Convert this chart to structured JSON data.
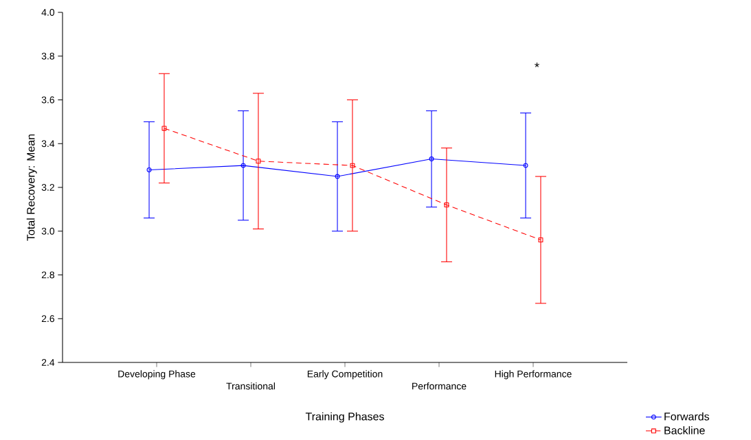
{
  "chart_data": {
    "type": "line",
    "xlabel": "Training Phases",
    "ylabel": "Total Recovery: Mean",
    "categories": [
      "Developing Phase",
      "Transitional",
      "Early Competition",
      "Performance",
      "High Performance"
    ],
    "series": [
      {
        "name": "Forwards",
        "color": "#0000ff",
        "marker": "circle",
        "line_style": "solid",
        "values": [
          3.28,
          3.3,
          3.25,
          3.33,
          3.3
        ],
        "errors": [
          0.22,
          0.25,
          0.25,
          0.22,
          0.24
        ]
      },
      {
        "name": "Backline",
        "color": "#ff0000",
        "marker": "square",
        "line_style": "dashed",
        "values": [
          3.47,
          3.32,
          3.3,
          3.12,
          2.96
        ],
        "errors": [
          0.25,
          0.31,
          0.3,
          0.26,
          0.29
        ]
      }
    ],
    "ylim": [
      2.4,
      4.0
    ],
    "yticks": [
      {
        "value": 2.4,
        "label": "2.4"
      },
      {
        "value": 2.6,
        "label": "2.6"
      },
      {
        "value": 2.8,
        "label": "2.8"
      },
      {
        "value": 3.0,
        "label": "3.0"
      },
      {
        "value": 3.2,
        "label": "3.2"
      },
      {
        "value": 3.4,
        "label": "3.4"
      },
      {
        "value": 3.6,
        "label": "3.6"
      },
      {
        "value": 3.8,
        "label": "3.8"
      },
      {
        "value": 4.0,
        "label": "4.0"
      }
    ],
    "grid": false,
    "legend": "bottom right",
    "annotations": [
      "*"
    ]
  }
}
